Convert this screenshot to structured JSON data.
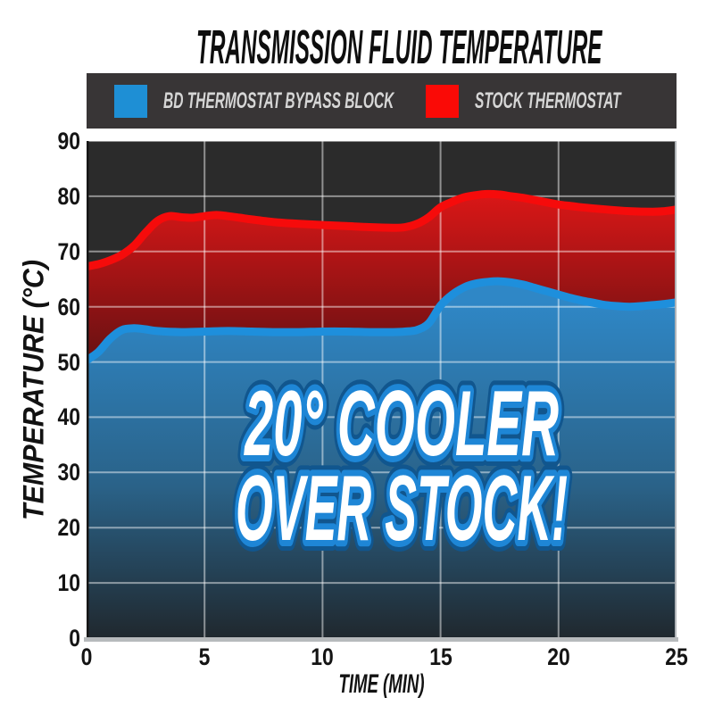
{
  "title": "TRANSMISSION FLUID TEMPERATURE",
  "legend": {
    "items": [
      {
        "label": "BD THERMOSTAT BYPASS BLOCK",
        "color": "#1e8fd5"
      },
      {
        "label": "STOCK THERMOSTAT",
        "color": "#fa0a06"
      }
    ]
  },
  "overlay": {
    "line1": "20° COOLER",
    "line2": "OVER STOCK!"
  },
  "colors": {
    "page_bg": "#ffffff",
    "title_text": "#0e0e0e",
    "legend_bg": "#383536",
    "legend_text": "#d6d6d6",
    "plot_bg": "#2b2b2b",
    "grid": "rgba(255,255,255,0.48)",
    "axis_strip": "#b7babc",
    "plot_edge_dark": "#161616",
    "plot_edge_light": "#b0b4b8",
    "tick_text": "#141414",
    "blue_line": "#1e8fdc",
    "blue_fill_top": "#2f87c6",
    "blue_fill_mid": "#2a6288",
    "blue_fill_bottom": "#20282e",
    "red_line": "#f60b0b",
    "red_fill_top": "#dd1717",
    "red_fill_bottom": "#5c1012",
    "overlay_fill": "#ffffff",
    "overlay_stroke": "#1e86d6",
    "overlay_stroke_outer": "#11568e"
  },
  "chart_data": {
    "type": "area",
    "title": "TRANSMISSION FLUID TEMPERATURE",
    "xlabel": "TIME (MIN)",
    "ylabel": "TEMPERATURE (°C)",
    "xlim": [
      0,
      25
    ],
    "ylim": [
      0,
      90
    ],
    "xticks": [
      0,
      5,
      10,
      15,
      20,
      25
    ],
    "yticks": [
      0,
      10,
      20,
      30,
      40,
      50,
      60,
      70,
      80,
      90
    ],
    "grid": true,
    "legend_position": "top",
    "annotation": "20° COOLER OVER STOCK!",
    "series": [
      {
        "name": "STOCK THERMOSTAT",
        "color": "#f60b0b",
        "x": [
          0,
          0.5,
          1,
          1.5,
          2,
          2.5,
          3,
          3.5,
          4,
          4.5,
          5,
          5.5,
          6,
          6.5,
          7,
          8,
          9,
          10,
          11,
          12,
          13,
          13.5,
          14,
          14.5,
          15,
          15.5,
          16,
          16.5,
          17,
          17.5,
          18,
          18.5,
          19,
          19.5,
          20,
          21,
          22,
          23,
          24,
          24.5,
          25
        ],
        "y": [
          67.3,
          67.7,
          68.4,
          69.4,
          71.0,
          73.4,
          75.5,
          76.4,
          76.2,
          76.1,
          76.4,
          76.6,
          76.4,
          76.1,
          75.8,
          75.3,
          75.0,
          74.8,
          74.6,
          74.4,
          74.3,
          74.4,
          75.0,
          76.2,
          78.0,
          79.0,
          79.8,
          80.2,
          80.4,
          80.3,
          80.0,
          79.7,
          79.3,
          78.9,
          78.5,
          78.0,
          77.6,
          77.3,
          77.2,
          77.3,
          77.6
        ]
      },
      {
        "name": "BD THERMOSTAT BYPASS BLOCK",
        "color": "#1e8fdc",
        "x": [
          0,
          0.5,
          1,
          1.5,
          2,
          2.5,
          3,
          4,
          5,
          6,
          7,
          8,
          9,
          10,
          11,
          12,
          13,
          13.5,
          14,
          14.5,
          15,
          15.5,
          16,
          16.5,
          17,
          17.5,
          18,
          18.5,
          19,
          19.5,
          20,
          20.5,
          21,
          21.5,
          22,
          22.5,
          23,
          23.5,
          24,
          24.5,
          25
        ],
        "y": [
          50.3,
          51.8,
          54.2,
          55.8,
          56.1,
          55.9,
          55.6,
          55.4,
          55.5,
          55.6,
          55.5,
          55.4,
          55.4,
          55.5,
          55.5,
          55.4,
          55.4,
          55.5,
          55.8,
          57.0,
          60.2,
          62.2,
          63.5,
          64.2,
          64.5,
          64.6,
          64.4,
          64.0,
          63.4,
          62.8,
          62.2,
          61.6,
          61.1,
          60.7,
          60.3,
          60.1,
          60.0,
          60.1,
          60.3,
          60.5,
          60.8
        ]
      }
    ]
  }
}
